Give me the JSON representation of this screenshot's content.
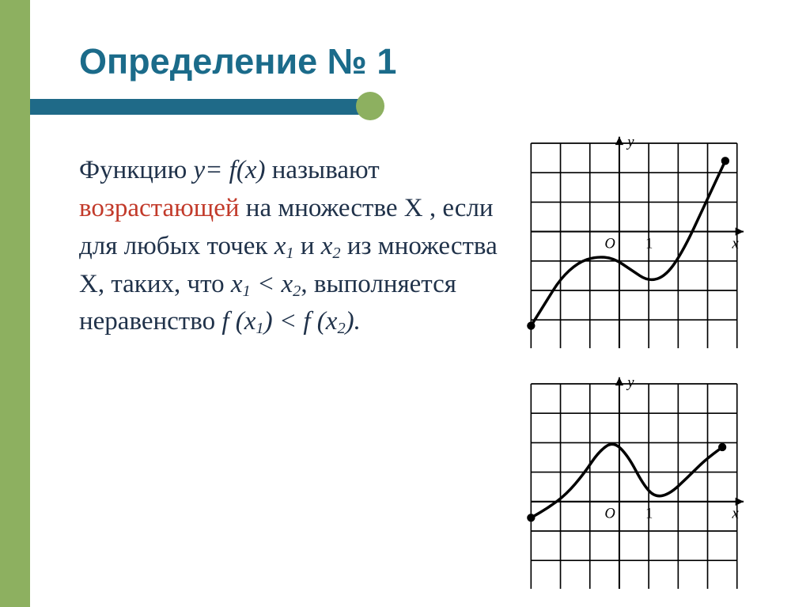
{
  "title": "Определение № 1",
  "para": {
    "lead": "Функцию ",
    "fn": "y= f(x)",
    "called": " называют ",
    "increasing": "возрастающей",
    "on_set": " на множестве X , если для любых точек  ",
    "x1": "x",
    "x1_sub": "1",
    "and": "   и   ",
    "x2": "x",
    "x2_sub": "2",
    "from_set": "   из множества X, таких, что ",
    "x1b": "x",
    "x1b_sub": "1",
    "lt": " < ",
    "x2b": "x",
    "x2b_sub": "2",
    "holds": ", выполняется неравенство  ",
    "fx1": "f (x",
    "fx1_sub": "1",
    "fx1_close": ")",
    "lt2": " <",
    "fx2": " f  (x",
    "fx2_sub": "2",
    "fx2_close": ").",
    "color_text": "#20324a",
    "color_red": "#c23a2a",
    "fontsize_pt": 25
  },
  "palette": {
    "stripe": "#8db060",
    "bar": "#1f6a88",
    "title": "#1b6b8a",
    "bg": "#ffffff",
    "graph_stroke": "#111111",
    "graph_curve": "#111111"
  },
  "graph_top": {
    "type": "line",
    "grid": {
      "cols": 7,
      "rows": 7,
      "cell": 40
    },
    "origin_col": 3,
    "origin_row": 3,
    "x_label": "x",
    "y_label": "y",
    "tick_label": "1",
    "xlim": [
      -3,
      4
    ],
    "ylim": [
      -4,
      3
    ],
    "curve_pts": [
      [
        -3.0,
        -3.2
      ],
      [
        -2.5,
        -2.4
      ],
      [
        -2.0,
        -1.6
      ],
      [
        -1.4,
        -1.05
      ],
      [
        -0.8,
        -0.85
      ],
      [
        -0.2,
        -0.9
      ],
      [
        0.4,
        -1.3
      ],
      [
        1.0,
        -1.7
      ],
      [
        1.6,
        -1.5
      ],
      [
        2.2,
        -0.6
      ],
      [
        2.9,
        0.9
      ],
      [
        3.6,
        2.4
      ]
    ],
    "endpoints": [
      [
        -3.0,
        -3.2
      ],
      [
        3.6,
        2.4
      ]
    ],
    "stroke_width": 3.4,
    "grid_width": 1.6,
    "axis_width": 2.0
  },
  "graph_bottom": {
    "type": "line",
    "grid": {
      "cols": 7,
      "rows": 7,
      "cell": 40
    },
    "origin_col": 3,
    "origin_row": 4,
    "x_label": "x",
    "y_label": "y",
    "tick_label": "1",
    "xlim": [
      -3,
      4
    ],
    "ylim": [
      -3,
      4
    ],
    "curve_pts": [
      [
        -3.0,
        -0.55
      ],
      [
        -2.4,
        -0.2
      ],
      [
        -1.8,
        0.25
      ],
      [
        -1.2,
        0.95
      ],
      [
        -0.7,
        1.7
      ],
      [
        -0.2,
        2.05
      ],
      [
        0.3,
        1.55
      ],
      [
        0.8,
        0.6
      ],
      [
        1.2,
        0.15
      ],
      [
        1.7,
        0.25
      ],
      [
        2.3,
        0.8
      ],
      [
        2.9,
        1.4
      ],
      [
        3.5,
        1.85
      ]
    ],
    "endpoints": [
      [
        -3.0,
        -0.55
      ],
      [
        3.5,
        1.85
      ]
    ],
    "stroke_width": 3.4,
    "grid_width": 1.6,
    "axis_width": 2.0
  }
}
